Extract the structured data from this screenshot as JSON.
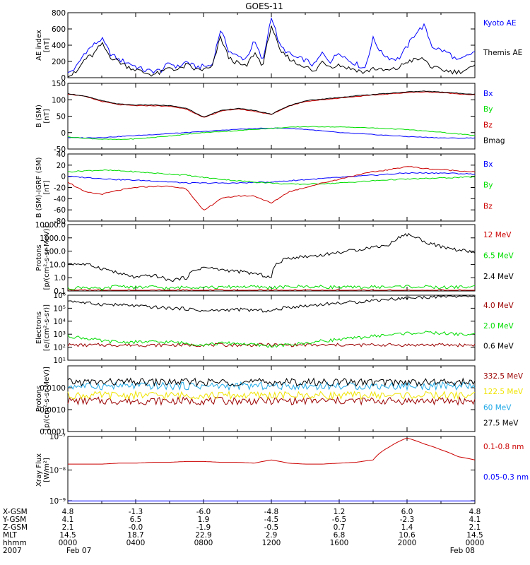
{
  "title": "GOES-11",
  "colors": {
    "black": "#000000",
    "blue": "#0000ff",
    "red": "#cc0000",
    "darkred": "#9b0000",
    "green": "#00dd00",
    "cyan": "#1ea8e6",
    "yellow": "#f0e400"
  },
  "footer": {
    "row_labels": [
      "X-GSM",
      "Y-GSM",
      "Z-GSM",
      "MLT",
      "hhmm",
      "2007"
    ],
    "columns": [
      [
        "4.8",
        "4.1",
        "2.1",
        "14.5",
        "0000",
        "Feb 07"
      ],
      [
        "-1.3",
        "6.5",
        "-0.0",
        "18.7",
        "0400",
        ""
      ],
      [
        "-6.0",
        "1.9",
        "-1.9",
        "22.9",
        "0800",
        ""
      ],
      [
        "-4.8",
        "-4.5",
        "-0.5",
        "2.9",
        "1200",
        ""
      ],
      [
        "1.2",
        "-6.5",
        "0.7",
        "6.8",
        "1600",
        ""
      ],
      [
        "6.0",
        "-2.3",
        "1.4",
        "10.6",
        "2000",
        ""
      ],
      [
        "4.8",
        "4.1",
        "2.1",
        "14.5",
        "0000",
        "Feb 08"
      ]
    ]
  },
  "chart_data": [
    {
      "type": "line",
      "id": "ae",
      "ylabel": "AE index\n[nT]",
      "ylim": [
        0,
        800
      ],
      "yticks": [
        "0",
        "200",
        "400",
        "600",
        "800"
      ],
      "x": [
        0,
        0.5,
        1,
        1.5,
        2,
        2.5,
        3,
        3.5,
        4,
        4.5,
        5,
        5.5,
        6,
        6.5,
        7,
        7.5,
        8,
        8.5,
        9,
        9.5,
        10,
        10.5,
        11,
        11.5,
        12,
        12.5,
        13,
        13.5,
        14,
        14.5,
        15,
        15.5,
        16,
        16.5,
        17,
        17.5,
        18,
        18.5,
        19,
        19.5,
        20,
        20.5,
        21,
        21.5,
        22,
        22.5,
        23,
        23.5,
        24
      ],
      "series": [
        {
          "name": "Kyoto AE",
          "color": "blue",
          "values": [
            50,
            130,
            310,
            400,
            480,
            300,
            220,
            190,
            140,
            90,
            80,
            90,
            180,
            130,
            200,
            130,
            140,
            150,
            590,
            330,
            260,
            230,
            450,
            200,
            760,
            390,
            300,
            240,
            220,
            150,
            300,
            200,
            320,
            220,
            170,
            110,
            480,
            300,
            240,
            230,
            380,
            550,
            640,
            380,
            340,
            300,
            200,
            260,
            320
          ]
        },
        {
          "name": "Themis AE",
          "color": "black",
          "values": [
            20,
            60,
            230,
            280,
            420,
            260,
            200,
            140,
            100,
            60,
            40,
            60,
            130,
            90,
            160,
            100,
            100,
            120,
            500,
            240,
            180,
            130,
            310,
            150,
            650,
            320,
            250,
            170,
            150,
            60,
            200,
            140,
            160,
            120,
            100,
            60,
            120,
            90,
            90,
            120,
            200,
            220,
            230,
            120,
            100,
            80,
            70,
            100,
            130
          ]
        }
      ],
      "legend": [
        "Kyoto AE",
        "Themis AE"
      ]
    },
    {
      "type": "line",
      "id": "b",
      "ylabel": "B (SM)\n[nT]",
      "ylim": [
        -50,
        150
      ],
      "yticks": [
        "-50",
        "0",
        "50",
        "100",
        "150"
      ],
      "x": [
        0,
        1,
        2,
        3,
        4,
        5,
        6,
        7,
        8,
        9,
        10,
        11,
        12,
        13,
        14,
        15,
        16,
        17,
        18,
        19,
        20,
        21,
        22,
        23,
        24
      ],
      "series": [
        {
          "name": "Bx",
          "color": "blue",
          "values": [
            -15,
            -16,
            -15,
            -12,
            -9,
            -6,
            -3,
            0,
            3,
            7,
            10,
            12,
            14,
            13,
            10,
            5,
            0,
            -3,
            -6,
            -9,
            -12,
            -14,
            -16,
            -17,
            -16
          ]
        },
        {
          "name": "By",
          "color": "green",
          "values": [
            -13,
            -17,
            -20,
            -21,
            -19,
            -15,
            -10,
            -5,
            0,
            3,
            6,
            10,
            13,
            16,
            18,
            18,
            17,
            16,
            14,
            12,
            9,
            5,
            1,
            -4,
            -9
          ]
        },
        {
          "name": "Bz",
          "color": "red",
          "values": [
            118,
            110,
            95,
            85,
            82,
            82,
            80,
            72,
            45,
            65,
            72,
            65,
            55,
            80,
            95,
            100,
            105,
            110,
            114,
            118,
            122,
            124,
            122,
            118,
            115
          ]
        },
        {
          "name": "Bmag",
          "color": "black",
          "values": [
            119,
            111,
            97,
            87,
            84,
            84,
            82,
            74,
            47,
            67,
            74,
            67,
            56,
            81,
            97,
            102,
            107,
            112,
            116,
            120,
            124,
            126,
            124,
            120,
            117
          ]
        }
      ],
      "legend": [
        "Bx",
        "By",
        "Bz",
        "Bmag"
      ]
    },
    {
      "type": "line",
      "id": "bdiff",
      "ylabel": "B (SM)-IGRF (SM)\n[nT]",
      "ylim": [
        -80,
        40
      ],
      "yticks": [
        "-80",
        "-60",
        "-40",
        "-20",
        "0",
        "20",
        "40"
      ],
      "x": [
        0,
        1,
        2,
        3,
        4,
        5,
        6,
        7,
        8,
        9,
        10,
        11,
        12,
        13,
        14,
        15,
        16,
        17,
        18,
        19,
        20,
        21,
        22,
        23,
        24
      ],
      "series": [
        {
          "name": "Bx",
          "color": "blue",
          "values": [
            0,
            -2,
            -4,
            -6,
            -7,
            -8,
            -10,
            -12,
            -12,
            -12,
            -12,
            -11,
            -10,
            -8,
            -6,
            -4,
            -2,
            0,
            2,
            4,
            6,
            6,
            6,
            5,
            4
          ]
        },
        {
          "name": "By",
          "color": "green",
          "values": [
            8,
            10,
            11,
            10,
            8,
            6,
            4,
            2,
            -2,
            -5,
            -8,
            -10,
            -12,
            -14,
            -14,
            -13,
            -12,
            -10,
            -8,
            -6,
            -5,
            -4,
            -3,
            -2,
            -1
          ]
        },
        {
          "name": "Bz",
          "color": "red",
          "values": [
            -10,
            -28,
            -32,
            -25,
            -20,
            -18,
            -18,
            -22,
            -62,
            -40,
            -35,
            -35,
            -48,
            -28,
            -20,
            -12,
            -5,
            2,
            8,
            12,
            18,
            14,
            12,
            10,
            8
          ]
        }
      ],
      "legend": [
        "Bx",
        "By",
        "Bz"
      ]
    },
    {
      "type": "line",
      "id": "protons_hi",
      "scale": "log",
      "ylabel": "Protons\n[p/(cm²-s-sr-MeV)]",
      "ylim": [
        0.1,
        10000
      ],
      "yticks": [
        "0.1",
        "1.0",
        "10.0",
        "100.0",
        "1000.0",
        "10000.0"
      ],
      "x": [
        0,
        1,
        2,
        3,
        4,
        5,
        6,
        7,
        8,
        9,
        10,
        11,
        12,
        13,
        14,
        15,
        16,
        17,
        18,
        19,
        20,
        21,
        22,
        23,
        24
      ],
      "series": [
        {
          "name": "12 MeV",
          "color": "red",
          "values": [
            0.1,
            0.1,
            0.1,
            0.1,
            0.1,
            0.1,
            0.1,
            0.1,
            0.1,
            0.1,
            0.1,
            0.1,
            0.1,
            0.1,
            0.1,
            0.1,
            0.1,
            0.1,
            0.1,
            0.1,
            0.1,
            0.1,
            0.1,
            0.1,
            0.1
          ]
        },
        {
          "name": "6.5 MeV",
          "color": "green",
          "values": [
            0.15,
            0.2,
            0.12,
            0.25,
            0.18,
            0.2,
            0.15,
            0.2,
            0.2,
            0.18,
            0.22,
            0.2,
            0.18,
            0.2,
            0.22,
            0.2,
            0.2,
            0.18,
            0.2,
            0.2,
            0.22,
            0.2,
            0.18,
            0.2,
            0.2
          ]
        },
        {
          "name": "2.4 MeV",
          "color": "black",
          "values": [
            12,
            10,
            5,
            2,
            1,
            1.5,
            0.6,
            1,
            6,
            4,
            3,
            2,
            1,
            30,
            40,
            50,
            80,
            120,
            200,
            300,
            1800,
            500,
            200,
            120,
            80
          ]
        }
      ],
      "legend": [
        "12 MeV",
        "6.5 MeV",
        "2.4 MeV"
      ]
    },
    {
      "type": "line",
      "id": "electrons",
      "scale": "log",
      "ylabel": "Electrons\n[e/(cm²-s-sr)]",
      "ylim": [
        10,
        1000000
      ],
      "yticks": [
        "10¹",
        "10²",
        "10³",
        "10⁴",
        "10⁵",
        "10⁶"
      ],
      "x": [
        0,
        1,
        2,
        3,
        4,
        5,
        6,
        7,
        8,
        9,
        10,
        11,
        12,
        13,
        14,
        15,
        16,
        17,
        18,
        19,
        20,
        21,
        22,
        23,
        24
      ],
      "series": [
        {
          "name": "4.0 MeV",
          "color": "darkred",
          "values": [
            150,
            140,
            150,
            145,
            150,
            140,
            150,
            145,
            150,
            150,
            145,
            150,
            150,
            145,
            150,
            140,
            150,
            145,
            150,
            150,
            145,
            150,
            150,
            145,
            150
          ]
        },
        {
          "name": "2.0 MeV",
          "color": "green",
          "values": [
            700,
            500,
            300,
            250,
            250,
            250,
            250,
            200,
            150,
            200,
            200,
            150,
            120,
            150,
            200,
            300,
            400,
            500,
            700,
            900,
            1200,
            1300,
            1200,
            1000,
            900
          ]
        },
        {
          "name": "0.6 MeV",
          "color": "black",
          "values": [
            400000,
            250000,
            200000,
            180000,
            150000,
            120000,
            100000,
            90000,
            60000,
            70000,
            80000,
            70000,
            60000,
            120000,
            150000,
            200000,
            250000,
            300000,
            400000,
            500000,
            600000,
            700000,
            800000,
            900000,
            900000
          ]
        }
      ],
      "legend": [
        "4.0 MeV",
        "2.0 MeV",
        "0.6 MeV"
      ]
    },
    {
      "type": "line",
      "id": "protons_lo",
      "scale": "log",
      "ylabel": "Protons\n[p/(cm²-s-sr-MeV)]",
      "ylim": [
        0.0001,
        0.1
      ],
      "yticks": [
        "0.0001",
        "0.0010",
        "0.0100"
      ],
      "x": [
        0,
        1,
        2,
        3,
        4,
        5,
        6,
        7,
        8,
        9,
        10,
        11,
        12,
        13,
        14,
        15,
        16,
        17,
        18,
        19,
        20,
        21,
        22,
        23,
        24
      ],
      "series": [
        {
          "name": "332.5 MeV",
          "color": "darkred",
          "values": [
            0.0025,
            0.0025,
            0.0025,
            0.0025,
            0.0025,
            0.0025,
            0.0025,
            0.0025,
            0.0025,
            0.0025,
            0.0025,
            0.0025,
            0.0025,
            0.0025,
            0.0025,
            0.0025,
            0.0025,
            0.0025,
            0.0025,
            0.0025,
            0.0025,
            0.0025,
            0.0025,
            0.0025,
            0.0025
          ]
        },
        {
          "name": "122.5 MeV",
          "color": "yellow",
          "values": [
            0.0045,
            0.0045,
            0.0045,
            0.0045,
            0.0045,
            0.0045,
            0.0045,
            0.0045,
            0.0045,
            0.0045,
            0.0045,
            0.0045,
            0.0045,
            0.0045,
            0.0045,
            0.0045,
            0.0045,
            0.0045,
            0.0045,
            0.0045,
            0.0045,
            0.0045,
            0.0045,
            0.0045,
            0.0045
          ]
        },
        {
          "name": "60 MeV",
          "color": "cyan",
          "values": [
            0.012,
            0.012,
            0.012,
            0.012,
            0.012,
            0.012,
            0.012,
            0.012,
            0.012,
            0.012,
            0.012,
            0.012,
            0.012,
            0.012,
            0.012,
            0.012,
            0.012,
            0.012,
            0.012,
            0.012,
            0.012,
            0.012,
            0.012,
            0.012,
            0.012
          ]
        },
        {
          "name": "27.5 MeV",
          "color": "black",
          "values": [
            0.018,
            0.018,
            0.018,
            0.018,
            0.018,
            0.018,
            0.018,
            0.018,
            0.018,
            0.018,
            0.018,
            0.018,
            0.018,
            0.018,
            0.018,
            0.018,
            0.018,
            0.018,
            0.018,
            0.018,
            0.018,
            0.018,
            0.018,
            0.018,
            0.018
          ]
        }
      ],
      "legend": [
        "332.5 MeV",
        "122.5 MeV",
        "60 MeV",
        "27.5 MeV"
      ]
    },
    {
      "type": "line",
      "id": "xray",
      "scale": "log",
      "ylabel": "Xray Flux\n[W/m²]",
      "ylim": [
        1e-09,
        1e-07
      ],
      "yticks": [
        "10⁻⁹",
        "10⁻⁸",
        "10⁻⁷"
      ],
      "x": [
        0,
        1,
        2,
        3,
        4,
        5,
        6,
        7,
        8,
        9,
        10,
        11,
        12,
        13,
        14,
        15,
        16,
        17,
        18,
        19,
        20,
        21,
        22,
        23,
        24
      ],
      "series": [
        {
          "name": "0.1-0.8 nm",
          "color": "red",
          "values": [
            1.5e-08,
            1.5e-08,
            1.5e-08,
            1.6e-08,
            1.6e-08,
            1.7e-08,
            1.7e-08,
            1.8e-08,
            1.8e-08,
            1.7e-08,
            1.7e-08,
            1.6e-08,
            2e-08,
            1.6e-08,
            1.5e-08,
            1.5e-08,
            1.6e-08,
            1.7e-08,
            2e-08,
            5e-08,
            9e-08,
            6e-08,
            4e-08,
            2.5e-08,
            2e-08
          ]
        },
        {
          "name": "0.05-0.3 nm",
          "color": "blue",
          "values": [
            1.2e-09,
            1.2e-09,
            1.2e-09,
            1.2e-09,
            1.2e-09,
            1.2e-09,
            1.2e-09,
            1.2e-09,
            1.2e-09,
            1.2e-09,
            1.2e-09,
            1.2e-09,
            1.2e-09,
            1.2e-09,
            1.2e-09,
            1.2e-09,
            1.2e-09,
            1.2e-09,
            1.2e-09,
            1.2e-09,
            1.2e-09,
            1.2e-09,
            1.2e-09,
            1.2e-09,
            1.2e-09
          ]
        }
      ],
      "legend": [
        "0.1-0.8 nm",
        "0.05-0.3 nm"
      ]
    }
  ]
}
